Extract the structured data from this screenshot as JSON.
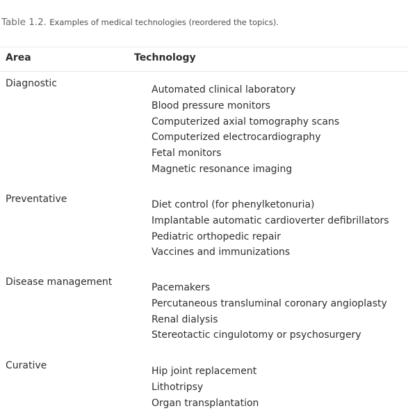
{
  "caption": {
    "label": "Table 1.2.",
    "text": "Examples of medical technologies (reordered the topics)."
  },
  "table": {
    "headers": [
      "Area",
      "Technology"
    ],
    "rows": [
      {
        "area": "Diagnostic",
        "technologies": [
          "Automated clinical laboratory",
          "Blood pressure monitors",
          "Computerized axial tomography scans",
          "Computerized electrocardiography",
          "Fetal monitors",
          "Magnetic resonance imaging"
        ]
      },
      {
        "area": "Preventative",
        "technologies": [
          "Diet control (for phenylketonuria)",
          "Implantable automatic cardioverter defibrillators",
          "Pediatric orthopedic repair",
          "Vaccines and immunizations"
        ]
      },
      {
        "area": "Disease management",
        "technologies": [
          "Pacemakers",
          "Percutaneous transluminal coronary angioplasty",
          "Renal dialysis",
          "Stereotactic cingulotomy or psychosurgery"
        ]
      },
      {
        "area": "Curative",
        "technologies": [
          "Hip joint replacement",
          "Lithotripsy",
          "Organ transplantation"
        ]
      }
    ]
  }
}
